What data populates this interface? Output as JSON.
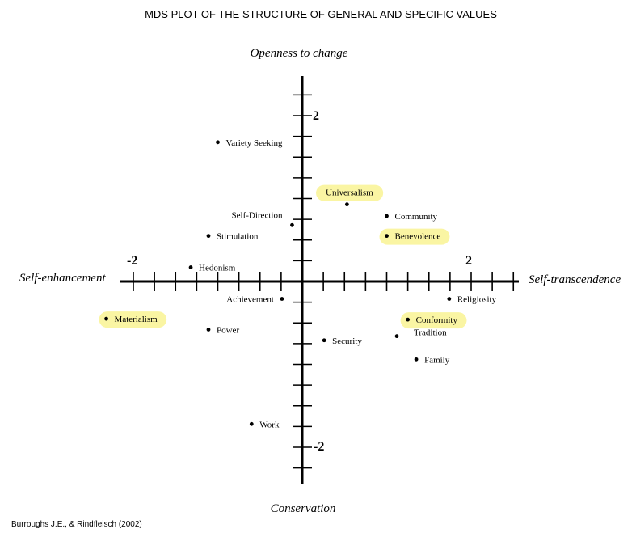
{
  "chart_data": {
    "type": "scatter",
    "title": "MDS PLOT OF THE STRUCTURE OF GENERAL AND SPECIFIC VALUES",
    "axis_labels": {
      "top": "Openness to change",
      "bottom": "Conservation",
      "left": "Self-enhancement",
      "right": "Self-transcendence"
    },
    "tick_labels": {
      "x_neg": "-2",
      "x_pos": "2",
      "y_pos": "2",
      "y_neg": "-2"
    },
    "xlim": [
      -2.2,
      2.5
    ],
    "ylim": [
      -2.3,
      2.4
    ],
    "grid": false,
    "highlight_color": "#faf5a3",
    "points": [
      {
        "label": "Variety Seeking",
        "x": -1.0,
        "y": 1.68,
        "label_side": "right",
        "highlighted": false
      },
      {
        "label": "Universalism",
        "x": 0.53,
        "y": 0.93,
        "label_side": "above",
        "highlighted": true
      },
      {
        "label": "Community",
        "x": 1.0,
        "y": 0.79,
        "label_side": "right",
        "highlighted": false
      },
      {
        "label": "Self-Direction",
        "x": -0.12,
        "y": 0.68,
        "label_side": "upper-left",
        "highlighted": false
      },
      {
        "label": "Stimulation",
        "x": -1.11,
        "y": 0.55,
        "label_side": "right",
        "highlighted": false
      },
      {
        "label": "Benevolence",
        "x": 1.0,
        "y": 0.55,
        "label_side": "right",
        "highlighted": true
      },
      {
        "label": "Hedonism",
        "x": -1.32,
        "y": 0.17,
        "label_side": "right",
        "highlighted": false
      },
      {
        "label": "Achievement",
        "x": -0.24,
        "y": -0.21,
        "label_side": "left",
        "highlighted": false
      },
      {
        "label": "Religiosity",
        "x": 1.74,
        "y": -0.21,
        "label_side": "right",
        "highlighted": false
      },
      {
        "label": "Materialism",
        "x": -2.32,
        "y": -0.45,
        "label_side": "right",
        "highlighted": true
      },
      {
        "label": "Conformity",
        "x": 1.25,
        "y": -0.46,
        "label_side": "right",
        "highlighted": true
      },
      {
        "label": "Power",
        "x": -1.11,
        "y": -0.58,
        "label_side": "right",
        "highlighted": false
      },
      {
        "label": "Tradition",
        "x": 1.12,
        "y": -0.66,
        "label_side": "upper-right",
        "highlighted": false
      },
      {
        "label": "Security",
        "x": 0.26,
        "y": -0.71,
        "label_side": "right",
        "highlighted": false
      },
      {
        "label": "Family",
        "x": 1.35,
        "y": -0.94,
        "label_side": "right",
        "highlighted": false
      },
      {
        "label": "Work",
        "x": -0.6,
        "y": -1.72,
        "label_side": "right",
        "highlighted": false
      }
    ]
  },
  "credit": "Burroughs J.E., & Rindfleisch (2002)"
}
